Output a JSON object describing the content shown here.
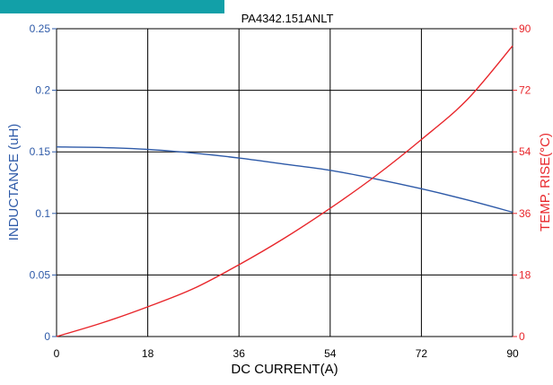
{
  "chart_data": {
    "type": "line",
    "title": "PA4342.151ANLT",
    "xlabel": "DC CURRENT(A)",
    "ylabel_left": "INDUCTANCE (uH)",
    "ylabel_right": "TEMP. RISE(°C)",
    "xlim": [
      0,
      90
    ],
    "ylim_left": [
      0,
      0.25
    ],
    "ylim_right": [
      0,
      90
    ],
    "x_ticks": [
      "0",
      "18",
      "36",
      "54",
      "72",
      "90"
    ],
    "y_left_ticks": [
      "0",
      "0.05",
      "0.1",
      "0.15",
      "0.2",
      "0.25"
    ],
    "y_right_ticks": [
      "0",
      "18",
      "36",
      "54",
      "72",
      "90"
    ],
    "grid": true,
    "series": [
      {
        "axis": "left",
        "color": "#2e5aa8",
        "x": [
          0,
          9,
          18,
          27,
          36,
          45,
          54,
          63,
          72,
          81,
          90
        ],
        "y": [
          0.154,
          0.1535,
          0.152,
          0.149,
          0.145,
          0.14,
          0.135,
          0.128,
          0.12,
          0.111,
          0.101
        ]
      },
      {
        "axis": "right",
        "color": "#e8262b",
        "x": [
          0,
          9,
          18,
          27,
          36,
          45,
          54,
          63,
          72,
          81,
          90
        ],
        "y": [
          0,
          4,
          8.7,
          14,
          21,
          28.8,
          37.5,
          47,
          57.6,
          69.2,
          85
        ]
      }
    ]
  },
  "header_band": {
    "color": "#12a0a8"
  }
}
